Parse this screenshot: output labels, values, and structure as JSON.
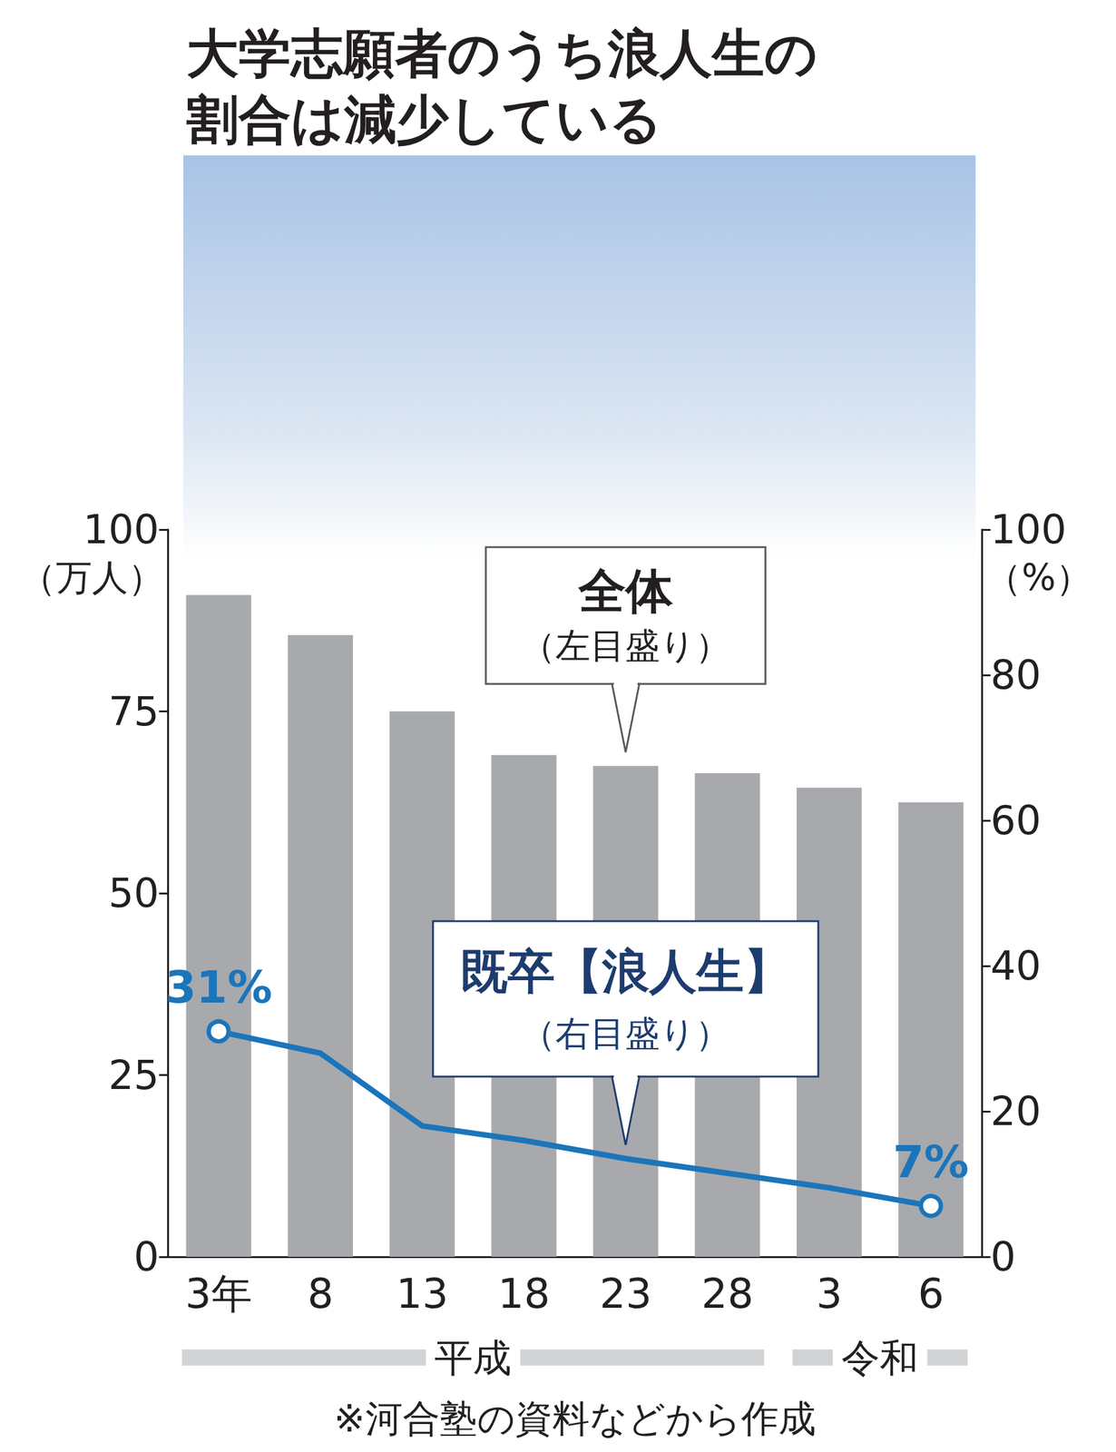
{
  "chart_data": {
    "type": "bar",
    "title": "大学志願者のうち浪人生の割合は減少している",
    "categories": [
      "3年",
      "8",
      "13",
      "18",
      "23",
      "28",
      "3",
      "6"
    ],
    "category_groups": [
      "平成",
      "平成",
      "平成",
      "平成",
      "平成",
      "平成",
      "令和",
      "令和"
    ],
    "series": [
      {
        "name": "全体",
        "type": "bar",
        "color": "#a7a9ac",
        "values": [
          91,
          85.5,
          75,
          69,
          67.5,
          66.5,
          64.5,
          62.5
        ]
      },
      {
        "name": "既卒【浪人生】",
        "type": "line",
        "axis": "y2",
        "color": "#1b75bb",
        "marker": "circle",
        "values": [
          31,
          28,
          18,
          16,
          13.5,
          11.5,
          9.5,
          7
        ],
        "value_labels": [
          "31%",
          null,
          null,
          null,
          null,
          null,
          null,
          "7%"
        ],
        "data_labels": true
      }
    ],
    "annotations": [
      {
        "series": "全体",
        "text": "（左目盛り）"
      },
      {
        "series": "既卒【浪人生】",
        "text": "（右目盛り）"
      }
    ],
    "ylabel": "（万人）",
    "y2label": "（%）",
    "ylim": [
      0,
      100
    ],
    "yticks": [
      0,
      25,
      50,
      75,
      100
    ],
    "y2lim": [
      0,
      100
    ],
    "y2ticks": [
      0,
      20,
      40,
      60,
      80,
      100
    ],
    "grid": false,
    "source": "※河合塾の資料などから作成"
  }
}
